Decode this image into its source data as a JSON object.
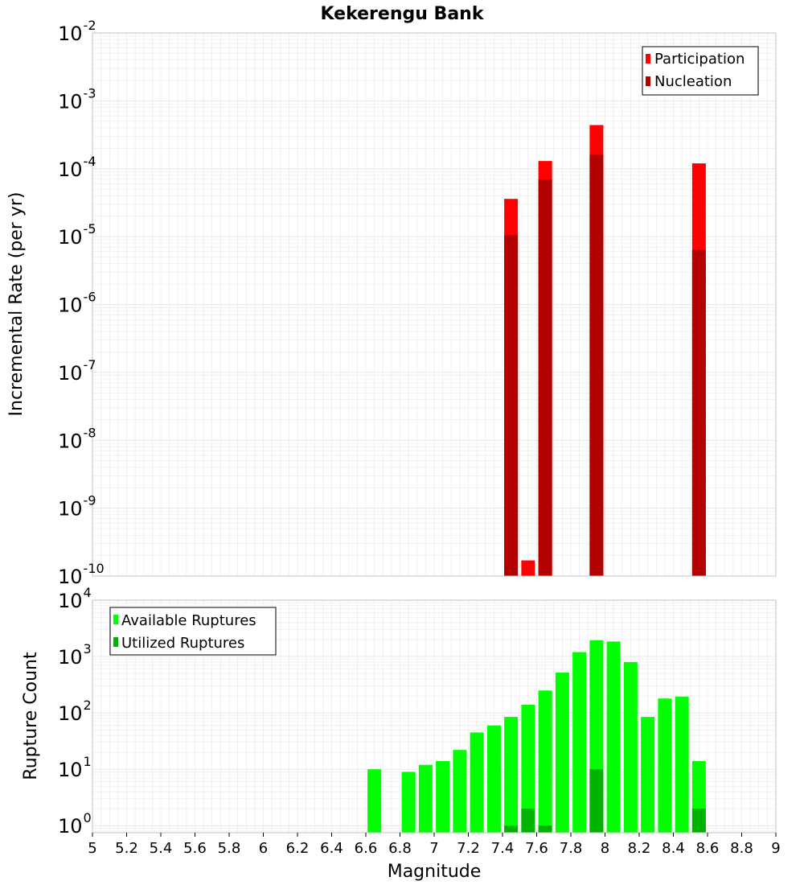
{
  "title": "Kekerengu Bank",
  "colors": {
    "participation": "#ff0000",
    "nucleation": "#b30000",
    "available": "#00ff00",
    "utilized": "#00b300",
    "grid": "#e6e6e6",
    "frame": "#c0c0c0"
  },
  "chart_data": [
    {
      "type": "bar",
      "title": "Kekerengu Bank",
      "xlabel": "Magnitude",
      "ylabel": "Incremental Rate (per yr)",
      "yscale": "log",
      "ylim": [
        1e-10,
        0.01
      ],
      "xlim": [
        5,
        9
      ],
      "legend_position": "top-right",
      "y_tick_exponents": [
        "-2",
        "-3",
        "-4",
        "-5",
        "-6",
        "-7",
        "-8",
        "-9",
        "-10"
      ],
      "series": [
        {
          "name": "Participation",
          "color": "#ff0000",
          "points": [
            {
              "x": 7.45,
              "y": 3.6e-05
            },
            {
              "x": 7.55,
              "y": 1.7e-10
            },
            {
              "x": 7.65,
              "y": 0.00013
            },
            {
              "x": 7.95,
              "y": 0.00044
            },
            {
              "x": 8.55,
              "y": 0.00012
            }
          ]
        },
        {
          "name": "Nucleation",
          "color": "#b30000",
          "points": [
            {
              "x": 7.45,
              "y": 1.05e-05
            },
            {
              "x": 7.65,
              "y": 7e-05
            },
            {
              "x": 7.95,
              "y": 0.00016
            },
            {
              "x": 8.55,
              "y": 6.4e-06
            }
          ]
        }
      ]
    },
    {
      "type": "bar",
      "xlabel": "Magnitude",
      "ylabel": "Rupture Count",
      "yscale": "log",
      "ylim": [
        0.75,
        10000
      ],
      "xlim": [
        5,
        9
      ],
      "legend_position": "top-left",
      "x_ticks": [
        "5",
        "5.2",
        "5.4",
        "5.6",
        "5.8",
        "6",
        "6.2",
        "6.4",
        "6.6",
        "6.8",
        "7",
        "7.2",
        "7.4",
        "7.6",
        "7.8",
        "8",
        "8.2",
        "8.4",
        "8.6",
        "8.8",
        "9"
      ],
      "y_tick_exponents": [
        "4",
        "3",
        "2",
        "1",
        "0"
      ],
      "series": [
        {
          "name": "Available Ruptures",
          "color": "#00ff00",
          "points": [
            {
              "x": 6.65,
              "y": 10
            },
            {
              "x": 6.85,
              "y": 9
            },
            {
              "x": 6.95,
              "y": 12
            },
            {
              "x": 7.05,
              "y": 14
            },
            {
              "x": 7.15,
              "y": 22
            },
            {
              "x": 7.25,
              "y": 45
            },
            {
              "x": 7.35,
              "y": 60
            },
            {
              "x": 7.45,
              "y": 85
            },
            {
              "x": 7.55,
              "y": 140
            },
            {
              "x": 7.65,
              "y": 250
            },
            {
              "x": 7.75,
              "y": 520
            },
            {
              "x": 7.85,
              "y": 1200
            },
            {
              "x": 7.95,
              "y": 1950
            },
            {
              "x": 8.05,
              "y": 1850
            },
            {
              "x": 8.15,
              "y": 800
            },
            {
              "x": 8.25,
              "y": 85
            },
            {
              "x": 8.35,
              "y": 180
            },
            {
              "x": 8.45,
              "y": 195
            },
            {
              "x": 8.55,
              "y": 14
            }
          ]
        },
        {
          "name": "Utilized Ruptures",
          "color": "#00b300",
          "points": [
            {
              "x": 7.45,
              "y": 1
            },
            {
              "x": 7.55,
              "y": 2
            },
            {
              "x": 7.65,
              "y": 1
            },
            {
              "x": 7.95,
              "y": 10
            },
            {
              "x": 8.55,
              "y": 2
            }
          ]
        }
      ]
    }
  ]
}
